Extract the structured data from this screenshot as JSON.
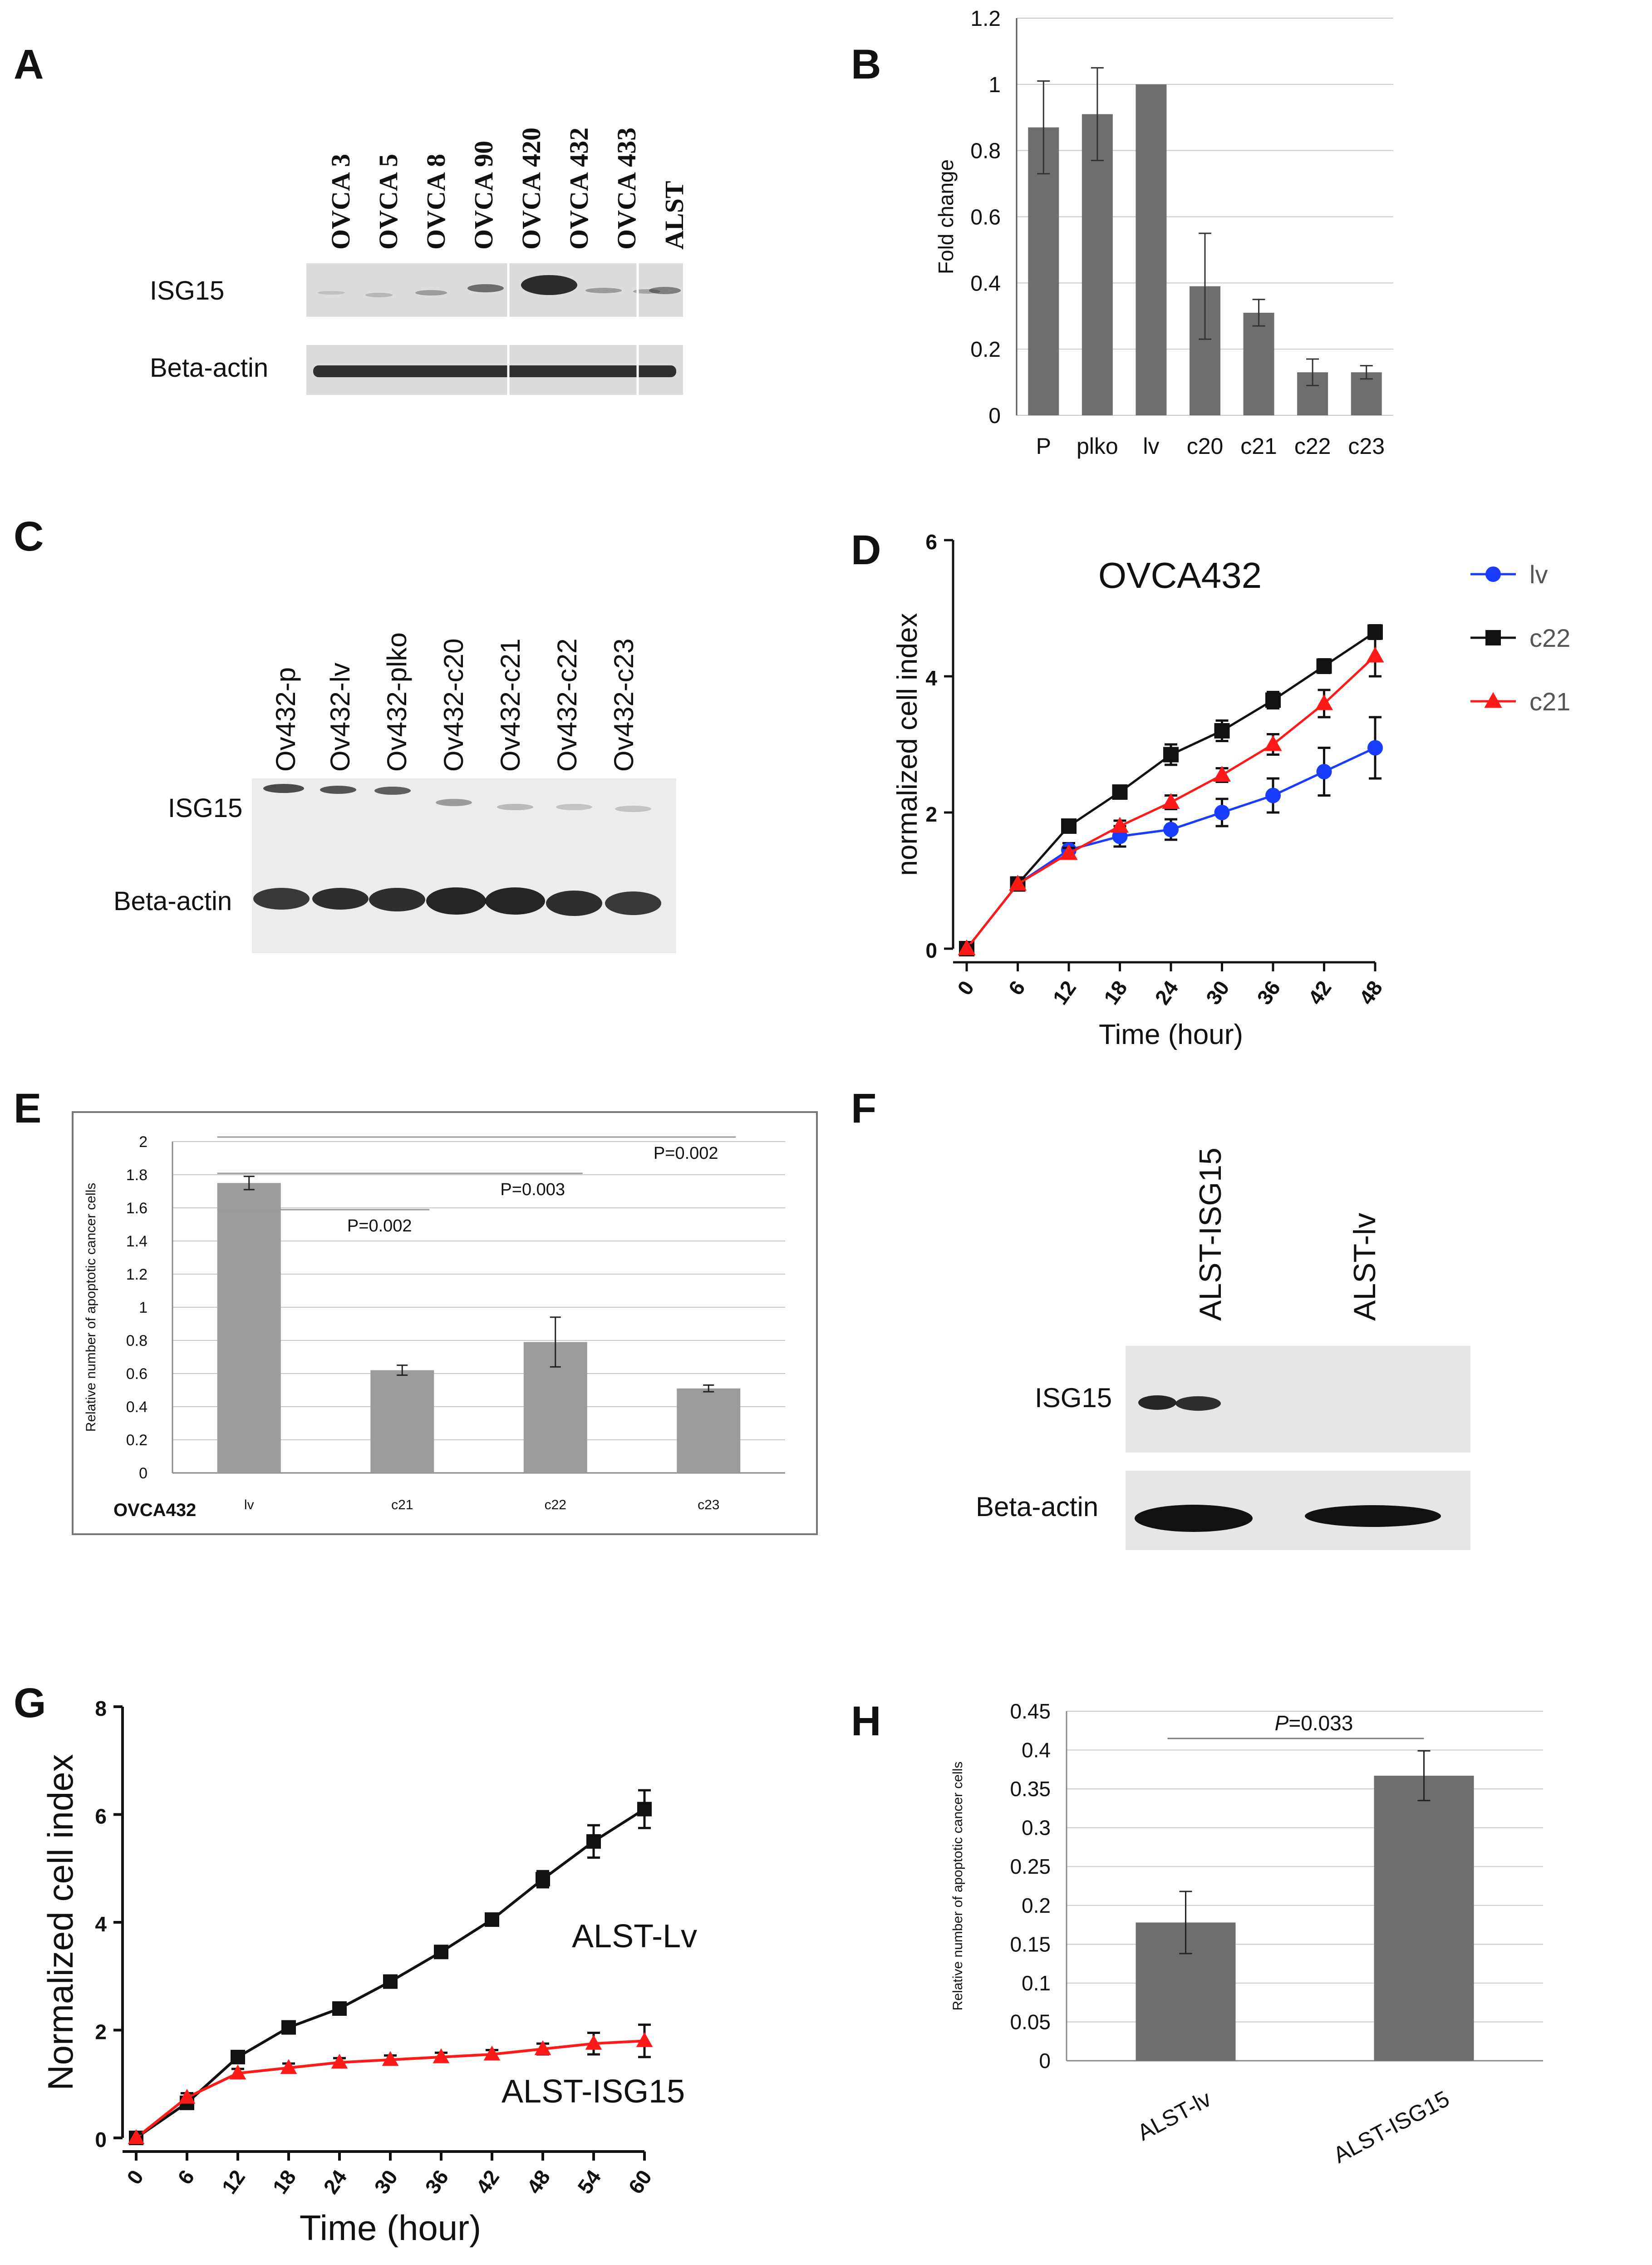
{
  "panels": {
    "A": {
      "letter": "A",
      "lanes": [
        "OVCA 3",
        "OVCA 5",
        "OVCA 8",
        "OVCA 90",
        "OVCA 420",
        "OVCA 432",
        "OVCA 433",
        "ALST"
      ],
      "rows": [
        "ISG15",
        "Beta-actin"
      ]
    },
    "C": {
      "letter": "C",
      "lanes": [
        "Ov432-p",
        "Ov432-lv",
        "Ov432-plko",
        "Ov432-c20",
        "Ov432-c21",
        "Ov432-c22",
        "Ov432-c23"
      ],
      "rows": [
        "ISG15",
        "Beta-actin"
      ]
    },
    "F": {
      "letter": "F",
      "lanes": [
        "ALST-ISG15",
        "ALST-lv"
      ],
      "rows": [
        "ISG15",
        "Beta-actin"
      ]
    },
    "B": {
      "letter": "B"
    },
    "D": {
      "letter": "D"
    },
    "E": {
      "letter": "E"
    },
    "G": {
      "letter": "G"
    },
    "H": {
      "letter": "H"
    }
  },
  "chart_data": [
    {
      "panel": "B",
      "type": "bar",
      "title": "",
      "xlabel": "",
      "ylabel": "Fold change",
      "categories": [
        "P",
        "plko",
        "lv",
        "c20",
        "c21",
        "c22",
        "c23"
      ],
      "values": [
        0.87,
        0.91,
        1.0,
        0.39,
        0.31,
        0.13,
        0.13
      ],
      "errors": [
        0.14,
        0.14,
        0.0,
        0.16,
        0.04,
        0.04,
        0.02
      ],
      "ylim": [
        0,
        1.2
      ],
      "yticks": [
        "0",
        "0.2",
        "0.4",
        "0.6",
        "0.8",
        "1",
        "1.2"
      ],
      "grid": true,
      "bar_color": "#6e6e6e"
    },
    {
      "panel": "D",
      "type": "line",
      "title": "OVCA432",
      "xlabel": "Time (hour)",
      "ylabel": "normalized cell index",
      "x": [
        0,
        6,
        12,
        18,
        24,
        30,
        36,
        42,
        48
      ],
      "xticks": [
        "0",
        "6",
        "12",
        "18",
        "24",
        "30",
        "36",
        "42",
        "48"
      ],
      "ylim": [
        0,
        6
      ],
      "yticks": [
        "0",
        "2",
        "4",
        "6"
      ],
      "legend_position": "top-right",
      "series": [
        {
          "name": "lv",
          "color": "#1a3cff",
          "marker": "circle",
          "values": [
            0,
            0.95,
            1.45,
            1.65,
            1.75,
            2.0,
            2.25,
            2.6,
            2.95
          ],
          "errors": [
            0.05,
            0.08,
            0.1,
            0.15,
            0.15,
            0.2,
            0.25,
            0.35,
            0.45
          ]
        },
        {
          "name": "c22",
          "color": "#111111",
          "marker": "square",
          "values": [
            0,
            0.95,
            1.8,
            2.3,
            2.85,
            3.2,
            3.65,
            4.15,
            4.65
          ],
          "errors": [
            0.05,
            0.08,
            0.08,
            0.08,
            0.15,
            0.15,
            0.12,
            0.1,
            0.1
          ]
        },
        {
          "name": "c21",
          "color": "#ff1a1a",
          "marker": "triangle",
          "values": [
            0,
            0.95,
            1.4,
            1.8,
            2.15,
            2.55,
            3.0,
            3.6,
            4.3
          ],
          "errors": [
            0.05,
            0.08,
            0.08,
            0.08,
            0.1,
            0.1,
            0.15,
            0.2,
            0.3
          ]
        }
      ]
    },
    {
      "panel": "E",
      "type": "bar",
      "title": "",
      "xlabel": "",
      "ylabel": "Relative number of apoptotic cancer cells",
      "corner_label": "OVCA432",
      "categories": [
        "lv",
        "c21",
        "c22",
        "c23"
      ],
      "values": [
        1.75,
        0.62,
        0.79,
        0.51
      ],
      "errors": [
        0.04,
        0.03,
        0.15,
        0.02
      ],
      "ylim": [
        0,
        2
      ],
      "yticks": [
        "0",
        "0.2",
        "0.4",
        "0.6",
        "0.8",
        "1",
        "1.2",
        "1.4",
        "1.6",
        "1.8",
        "2"
      ],
      "grid": true,
      "bar_color": "#9b9b9b",
      "annotations": [
        {
          "text": "P=0.002",
          "from": "lv",
          "to": "c21"
        },
        {
          "text": "P=0.003",
          "from": "lv",
          "to": "c22"
        },
        {
          "text": "P=0.002",
          "from": "lv",
          "to": "c23"
        }
      ]
    },
    {
      "panel": "G",
      "type": "line",
      "title": "",
      "xlabel": "Time (hour)",
      "ylabel": "Normalized cell index",
      "x": [
        0,
        6,
        12,
        18,
        24,
        30,
        36,
        42,
        48,
        54,
        60
      ],
      "xticks": [
        "0",
        "6",
        "12",
        "18",
        "24",
        "30",
        "36",
        "42",
        "48",
        "54",
        "60"
      ],
      "ylim": [
        0,
        8
      ],
      "yticks": [
        "0",
        "2",
        "4",
        "6",
        "8"
      ],
      "series": [
        {
          "name": "ALST-Lv",
          "color": "#111111",
          "marker": "square",
          "values": [
            0,
            0.65,
            1.5,
            2.05,
            2.4,
            2.9,
            3.45,
            4.05,
            4.8,
            5.5,
            6.1
          ],
          "errors": [
            0.08,
            0.08,
            0.08,
            0.08,
            0.08,
            0.08,
            0.08,
            0.08,
            0.15,
            0.3,
            0.35
          ]
        },
        {
          "name": "ALST-ISG15",
          "color": "#ff1a1a",
          "marker": "triangle",
          "values": [
            0,
            0.75,
            1.2,
            1.3,
            1.4,
            1.45,
            1.5,
            1.55,
            1.65,
            1.75,
            1.8
          ],
          "errors": [
            0.08,
            0.08,
            0.08,
            0.08,
            0.08,
            0.08,
            0.08,
            0.08,
            0.1,
            0.2,
            0.3
          ]
        }
      ]
    },
    {
      "panel": "H",
      "type": "bar",
      "title": "",
      "xlabel": "",
      "ylabel": "Relative number of apoptotic cancer cells",
      "categories": [
        "ALST-lv",
        "ALST-ISG15"
      ],
      "values": [
        0.178,
        0.367
      ],
      "errors": [
        0.04,
        0.032
      ],
      "ylim": [
        0,
        0.45
      ],
      "yticks": [
        "0",
        "0.05",
        "0.1",
        "0.15",
        "0.2",
        "0.25",
        "0.3",
        "0.35",
        "0.4",
        "0.45"
      ],
      "grid": true,
      "bar_color": "#6e6e6e",
      "annotations": [
        {
          "text_italic": "P",
          "text": "=0.033",
          "from": "ALST-lv",
          "to": "ALST-ISG15"
        }
      ]
    }
  ]
}
